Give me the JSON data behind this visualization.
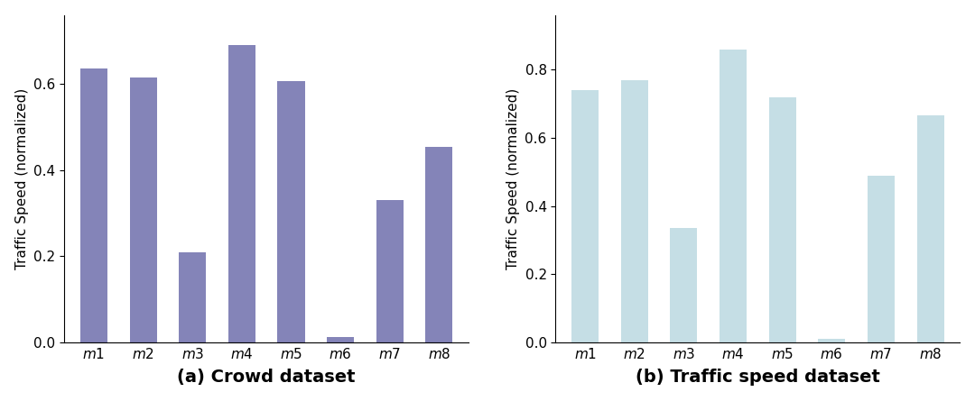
{
  "categories": [
    "m1",
    "m2",
    "m3",
    "m4",
    "m5",
    "m6",
    "m7",
    "m8"
  ],
  "crowd_values": [
    0.635,
    0.615,
    0.21,
    0.69,
    0.607,
    0.013,
    0.33,
    0.455
  ],
  "traffic_values": [
    0.74,
    0.77,
    0.335,
    0.858,
    0.72,
    0.01,
    0.49,
    0.665
  ],
  "crowd_color": "#8484B8",
  "traffic_color": "#C5DEE5",
  "crowd_title": "(a) Crowd dataset",
  "traffic_title": "(b) Traffic speed dataset",
  "ylabel": "Traffic Speed (normalized)",
  "crowd_ylim": [
    0,
    0.76
  ],
  "traffic_ylim": [
    0,
    0.96
  ],
  "title_fontsize": 14,
  "label_fontsize": 11,
  "tick_fontsize": 11,
  "bar_width": 0.55
}
